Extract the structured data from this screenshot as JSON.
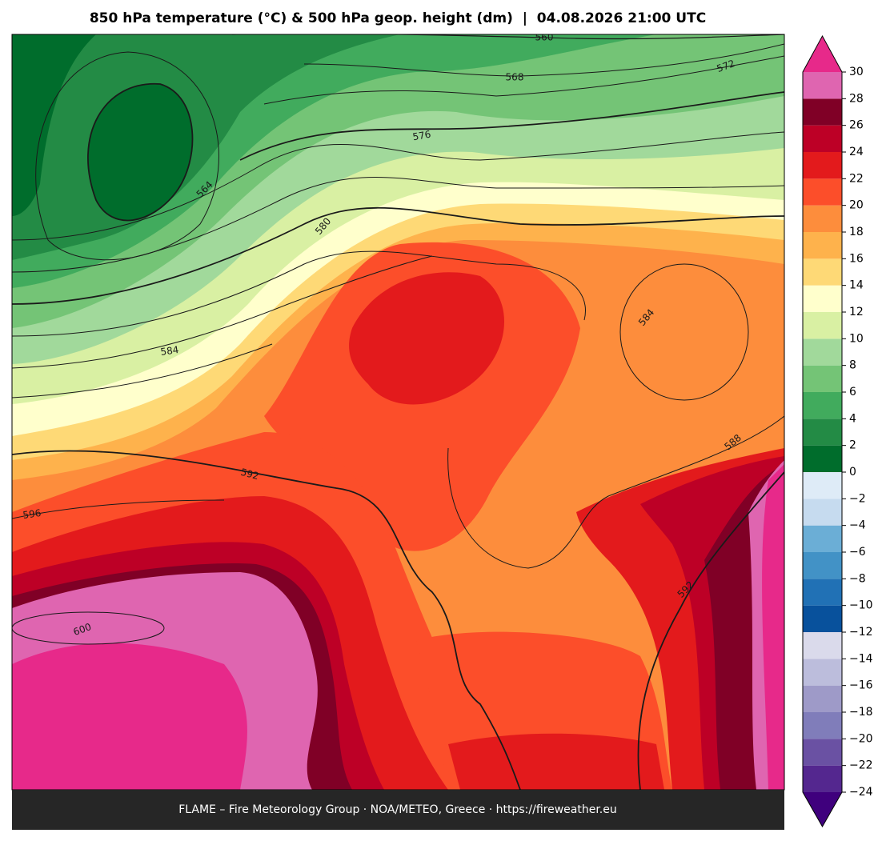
{
  "map": {
    "title": "850 hPa temperature (°C) & 500 hPa geop. height (dm)  |  04.08.2026 21:00 UTC",
    "footer": "FLAME – Fire Meteorology Group · NOA/METEO, Greece · https://fireweather.eu",
    "contour_labels": [
      "560",
      "568",
      "572",
      "576",
      "564",
      "580",
      "584",
      "584",
      "588",
      "592",
      "592",
      "596",
      "600"
    ]
  },
  "colorbar": {
    "lim": [
      -24,
      30
    ],
    "ticks": [
      {
        "value": -24,
        "label": "−24"
      },
      {
        "value": -22,
        "label": "−22"
      },
      {
        "value": -20,
        "label": "−20"
      },
      {
        "value": -18,
        "label": "−18"
      },
      {
        "value": -16,
        "label": "−16"
      },
      {
        "value": -14,
        "label": "−14"
      },
      {
        "value": -12,
        "label": "−12"
      },
      {
        "value": -10,
        "label": "−10"
      },
      {
        "value": -8,
        "label": "−8"
      },
      {
        "value": -6,
        "label": "−6"
      },
      {
        "value": -4,
        "label": "−4"
      },
      {
        "value": -2,
        "label": "−2"
      },
      0,
      2,
      4,
      6,
      8,
      10,
      12,
      14,
      16,
      18,
      20,
      22,
      24,
      26,
      28,
      30
    ],
    "colors": [
      "#54278f",
      "#6a51a3",
      "#807dba",
      "#9e9ac8",
      "#bcbddc",
      "#dadaeb",
      "#08519c",
      "#2171b5",
      "#4292c6",
      "#6baed6",
      "#c6dbef",
      "#deebf7",
      "#006d2c",
      "#238b45",
      "#41ab5d",
      "#74c476",
      "#a1d99b",
      "#d9f0a3",
      "#ffffcc",
      "#fed976",
      "#feb24c",
      "#fd8d3c",
      "#fc4e2a",
      "#e31a1c",
      "#bd0026",
      "#800026",
      "#df65b0"
    ],
    "extend_min_color": "#3f007d",
    "extend_max_color": "#e7298a"
  }
}
